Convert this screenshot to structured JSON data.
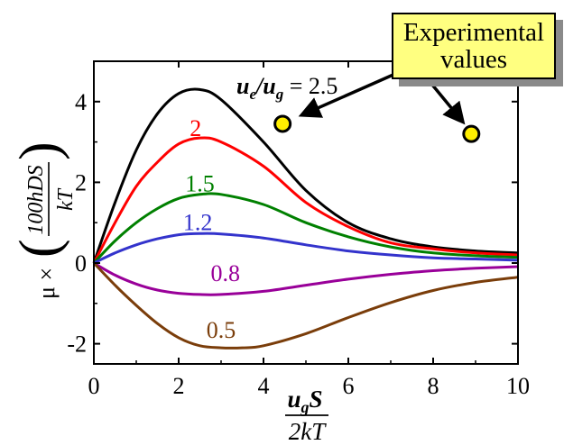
{
  "chart_data": {
    "type": "line",
    "title": "",
    "xlim": [
      0,
      10
    ],
    "ylim": [
      -2.5,
      5
    ],
    "x_ticks": [
      "0",
      "2",
      "4",
      "6",
      "8",
      "10"
    ],
    "y_ticks": [
      "-2",
      "0",
      "2",
      "4"
    ],
    "xlabel": {
      "numerator": "u",
      "numerator_sub": "g",
      "numerator_tail": "S",
      "denominator": "2kT"
    },
    "ylabel": {
      "prefix": "μ ×",
      "numerator": "100hDS",
      "denominator": "kT"
    },
    "series_label_prefix": "u",
    "series_label_sub_e": "e",
    "series_label_slash": "/u",
    "series_label_sub_g": "g",
    "series_label_eq": " = 2.5",
    "series": [
      {
        "label": "2.5",
        "color": "#000000",
        "x": [
          0,
          0.5,
          1,
          1.5,
          2,
          2.5,
          3,
          4,
          5,
          6,
          7,
          8,
          9,
          10
        ],
        "y": [
          0,
          1.5,
          2.8,
          3.7,
          4.2,
          4.3,
          4.05,
          3.0,
          1.8,
          1.0,
          0.6,
          0.4,
          0.3,
          0.25
        ]
      },
      {
        "label": "2",
        "color": "#ff0000",
        "x": [
          0,
          0.5,
          1,
          1.5,
          2,
          2.5,
          3,
          4,
          5,
          6,
          7,
          8,
          9,
          10
        ],
        "y": [
          0,
          1.0,
          1.9,
          2.5,
          2.95,
          3.1,
          3.0,
          2.4,
          1.5,
          0.9,
          0.5,
          0.35,
          0.25,
          0.2
        ]
      },
      {
        "label": "1.5",
        "color": "#008000",
        "x": [
          0,
          0.5,
          1,
          1.5,
          2,
          2.5,
          3,
          4,
          5,
          6,
          7,
          8,
          9,
          10
        ],
        "y": [
          0,
          0.55,
          1.0,
          1.35,
          1.6,
          1.7,
          1.7,
          1.45,
          1.0,
          0.65,
          0.4,
          0.25,
          0.18,
          0.14
        ]
      },
      {
        "label": "1.2",
        "color": "#3333cc",
        "x": [
          0,
          0.5,
          1,
          1.5,
          2,
          2.5,
          3,
          4,
          5,
          6,
          7,
          8,
          9,
          10
        ],
        "y": [
          0,
          0.25,
          0.45,
          0.6,
          0.7,
          0.73,
          0.72,
          0.62,
          0.45,
          0.3,
          0.2,
          0.13,
          0.1,
          0.07
        ]
      },
      {
        "label": "0.8",
        "color": "#990099",
        "x": [
          0,
          0.5,
          1,
          1.5,
          2,
          2.5,
          3,
          4,
          5,
          6,
          7,
          8,
          9,
          10
        ],
        "y": [
          0,
          -0.3,
          -0.52,
          -0.67,
          -0.75,
          -0.78,
          -0.78,
          -0.7,
          -0.55,
          -0.4,
          -0.28,
          -0.19,
          -0.13,
          -0.09
        ]
      },
      {
        "label": "0.5",
        "color": "#7a3d0a",
        "x": [
          0,
          0.5,
          1,
          1.5,
          2,
          2.5,
          3,
          3.5,
          4,
          5,
          6,
          7,
          8,
          9,
          10
        ],
        "y": [
          0,
          -0.55,
          -1.05,
          -1.5,
          -1.85,
          -2.05,
          -2.1,
          -2.1,
          -2.05,
          -1.75,
          -1.35,
          -0.98,
          -0.68,
          -0.48,
          -0.35
        ]
      }
    ],
    "experimental_points": [
      {
        "x": 4.45,
        "y": 3.45
      },
      {
        "x": 8.9,
        "y": 3.2
      }
    ],
    "callout": {
      "line1": "Experimental",
      "line2": "values"
    }
  }
}
